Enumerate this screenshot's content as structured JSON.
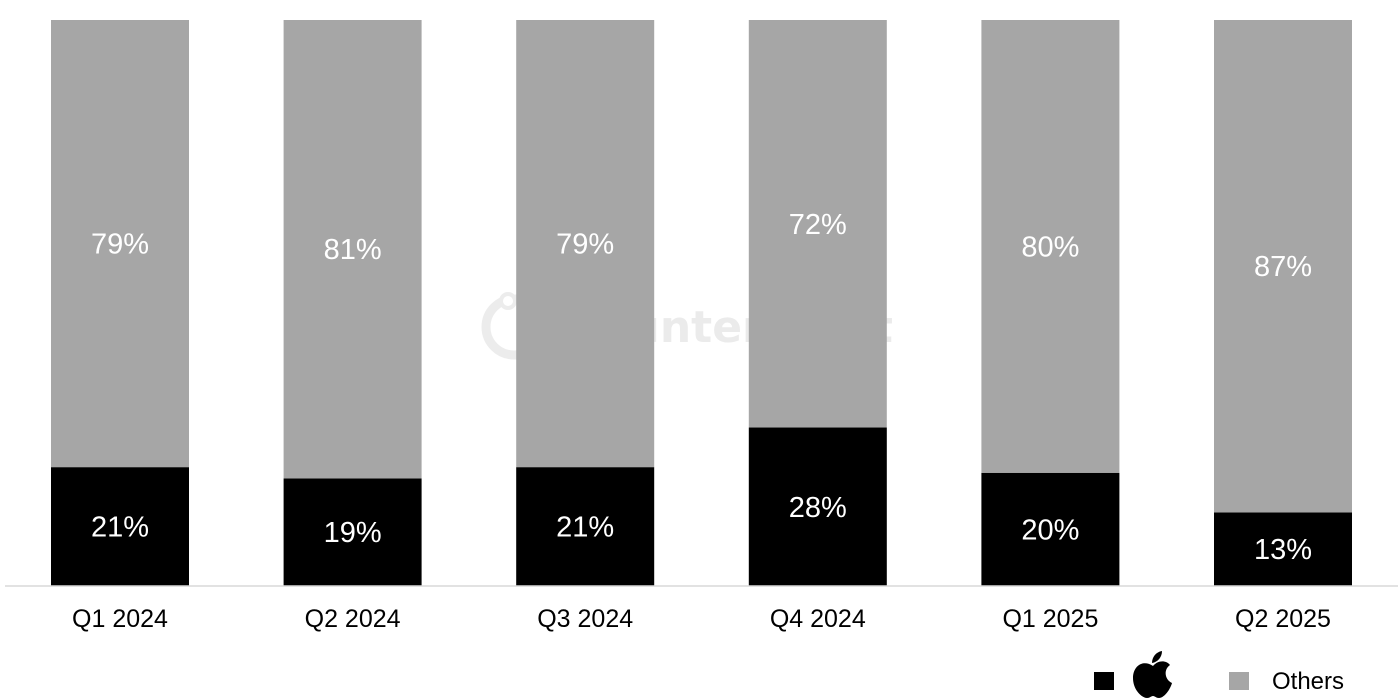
{
  "chart_data": {
    "type": "bar",
    "stacked": true,
    "normalized": true,
    "categories": [
      "Q1 2024",
      "Q2 2024",
      "Q3 2024",
      "Q4 2024",
      "Q1 2025",
      "Q2 2025"
    ],
    "series": [
      {
        "icon": "apple-logo-icon",
        "color": "#000000",
        "values": [
          21,
          19,
          21,
          28,
          20,
          13
        ],
        "labels": [
          "21%",
          "19%",
          "21%",
          "28%",
          "20%",
          "13%"
        ]
      },
      {
        "name": "Others",
        "color": "#a6a6a6",
        "values": [
          79,
          81,
          79,
          72,
          80,
          87
        ],
        "labels": [
          "79%",
          "81%",
          "79%",
          "72%",
          "80%",
          "87%"
        ]
      }
    ],
    "ylim": [
      0,
      100
    ],
    "grid": false,
    "legend_position": "bottom-right",
    "label_color": "#ffffff",
    "axis_color": "#d9d9d9"
  },
  "watermark": {
    "text": "Counterpoint",
    "icon": "counterpoint-logo-icon",
    "color": "#ebebeb"
  }
}
